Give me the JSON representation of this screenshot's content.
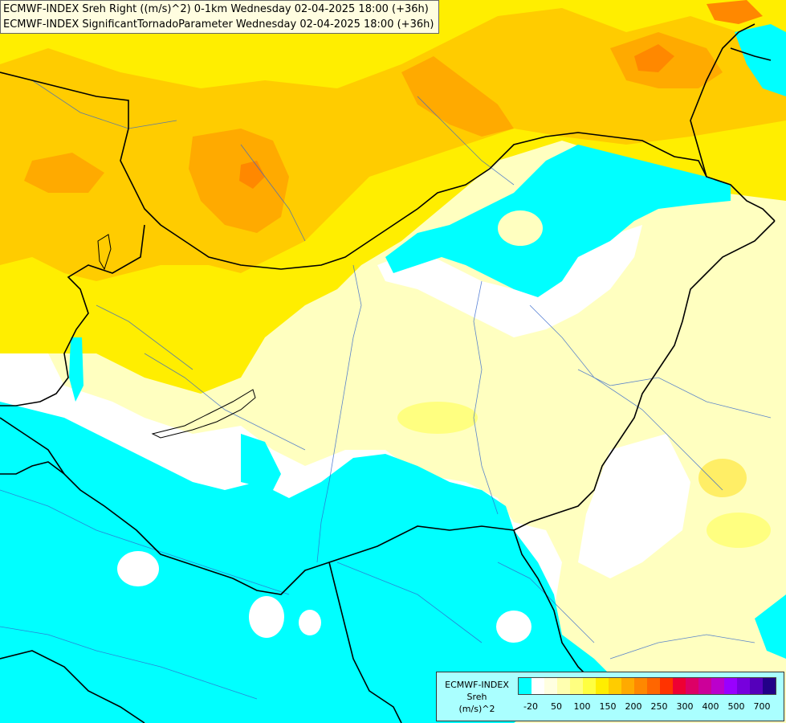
{
  "header": {
    "line1": "ECMWF-INDEX Sreh Right ((m/s)^2) 0-1km Wednesday 02-04-2025 18:00 (+36h)",
    "line2": "ECMWF-INDEX SignificantTornadoParameter Wednesday 02-04-2025 18:00 (+36h)"
  },
  "legend": {
    "title_line1": "ECMWF-INDEX",
    "title_line2": "Sreh",
    "title_line3": "(m/s)^2",
    "colors": [
      "#00ffff",
      "#ffffff",
      "#ffffe0",
      "#ffffb0",
      "#ffff80",
      "#ffff40",
      "#ffee00",
      "#ffcc00",
      "#ffaa00",
      "#ff8800",
      "#ff6600",
      "#ff3300",
      "#ee0033",
      "#dd0066",
      "#cc0099",
      "#bb00cc",
      "#9900ff",
      "#7700dd",
      "#5500bb",
      "#220088"
    ],
    "ticks": [
      "-20",
      "50",
      "100",
      "150",
      "200",
      "250",
      "300",
      "400",
      "500",
      "700"
    ]
  }
}
